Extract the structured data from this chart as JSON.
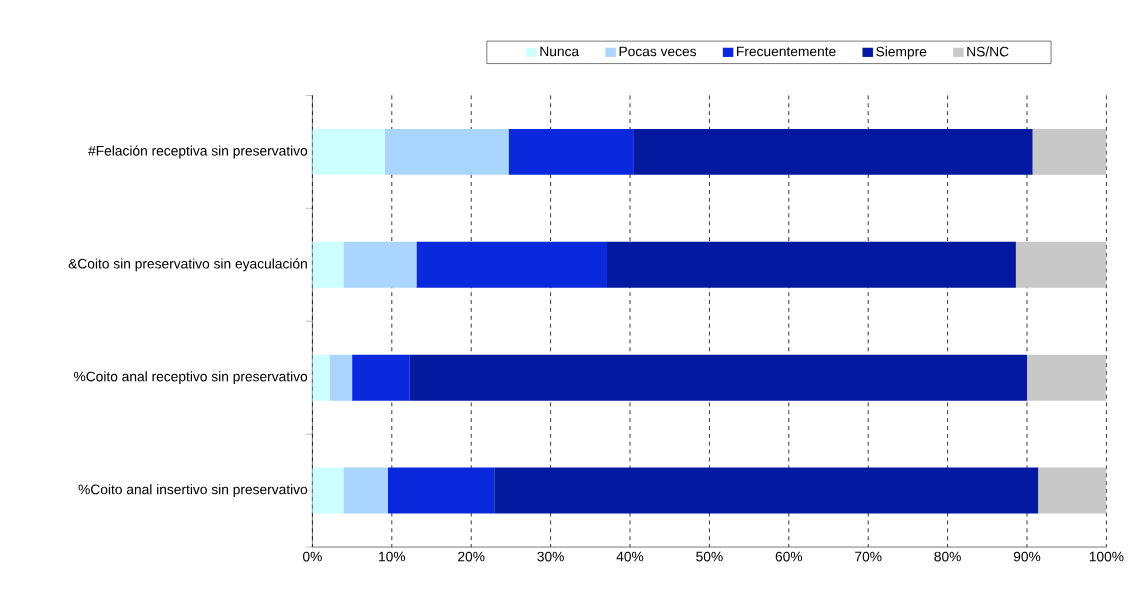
{
  "chart_data": {
    "type": "bar",
    "orientation": "horizontal",
    "stacked": true,
    "categories": [
      "#Felación receptiva sin preservativo",
      "&Coito sin preservativo sin eyaculación",
      "%Coito anal receptivo sin preservativo",
      "%Coito anal insertivo sin preservativo"
    ],
    "series": [
      {
        "name": "Nunca",
        "color": "#ccffff",
        "values": [
          9.1,
          3.9,
          2.2,
          3.9
        ]
      },
      {
        "name": "Pocas veces",
        "color": "#aad5ff",
        "values": [
          15.6,
          9.2,
          2.8,
          5.6
        ]
      },
      {
        "name": "Frecuentemente",
        "color": "#0a28dc",
        "values": [
          15.7,
          24.0,
          7.2,
          13.4
        ]
      },
      {
        "name": "Siempre",
        "color": "#031aa0",
        "values": [
          50.3,
          51.5,
          77.8,
          68.5
        ]
      },
      {
        "name": "NS/NC",
        "color": "#c8c8c8",
        "values": [
          9.3,
          11.4,
          10.0,
          8.6
        ]
      }
    ],
    "xlim": [
      0,
      100
    ],
    "xticks": [
      {
        "value": 0,
        "label": "0%"
      },
      {
        "value": 10,
        "label": "10%"
      },
      {
        "value": 20,
        "label": "20%"
      },
      {
        "value": 30,
        "label": "30%"
      },
      {
        "value": 40,
        "label": "40%"
      },
      {
        "value": 50,
        "label": "50%"
      },
      {
        "value": 60,
        "label": "60%"
      },
      {
        "value": 70,
        "label": "70%"
      },
      {
        "value": 80,
        "label": "80%"
      },
      {
        "value": 90,
        "label": "90%"
      },
      {
        "value": 100,
        "label": "100%"
      }
    ],
    "grid": "x",
    "legend": "top"
  }
}
